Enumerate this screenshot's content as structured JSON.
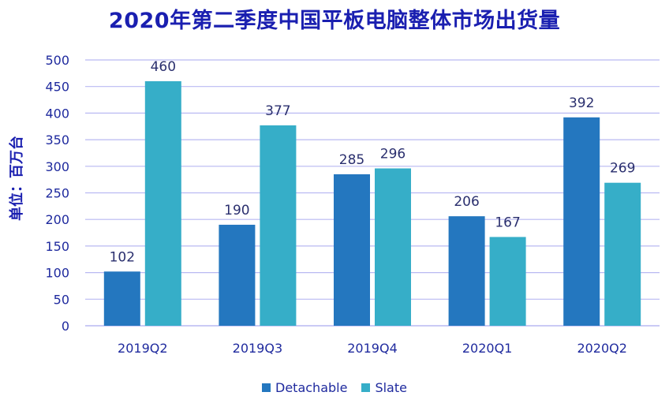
{
  "chart_data": {
    "type": "bar",
    "title": "2020年第二季度中国平板电脑整体市场出货量",
    "ylabel": "单位：百万台",
    "xlabel": "",
    "categories": [
      "2019Q2",
      "2019Q3",
      "2019Q4",
      "2020Q1",
      "2020Q2"
    ],
    "series": [
      {
        "name": "Detachable",
        "color": "#2477bf",
        "values": [
          102,
          190,
          285,
          206,
          392
        ]
      },
      {
        "name": "Slate",
        "color": "#36aec8",
        "values": [
          460,
          377,
          296,
          167,
          269
        ]
      }
    ],
    "ylim": [
      0,
      500
    ],
    "yticks": [
      0,
      50,
      100,
      150,
      200,
      250,
      300,
      350,
      400,
      450,
      500
    ],
    "grid": true,
    "gridColor": "#b9b9f2",
    "legend": "bottom-center",
    "data_labels": true
  }
}
